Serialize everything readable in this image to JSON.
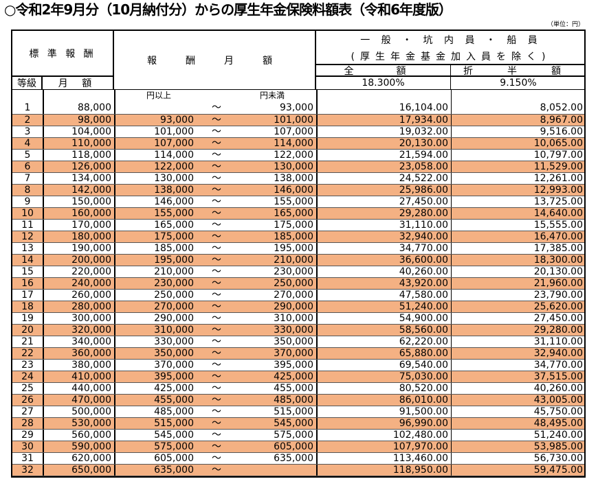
{
  "title": "○令和2年9月分（10月納付分）からの厚生年金保険料額表（令和6年度版）",
  "unit": "（単位：円）",
  "header": {
    "standard": "標 準 報 酬",
    "grade": "等級",
    "monthly": "月 額",
    "range": "報　酬　月　額",
    "category_line1": "一 般 ・ 坑 内 員 ・ 船 員",
    "category_line2": "(厚生年金基金加入員を除く)",
    "full": "全　額",
    "half": "折　半　額",
    "full_rate": "18.300%",
    "half_rate": "9.150%",
    "lower_unit": "円以上",
    "upper_unit": "円未満",
    "tilde": "～"
  },
  "colors": {
    "alt_row": "#F4B183"
  },
  "rows": [
    [
      "1",
      "88,000",
      "",
      "93,000",
      "16,104.00",
      "8,052.00"
    ],
    [
      "2",
      "98,000",
      "93,000",
      "101,000",
      "17,934.00",
      "8,967.00"
    ],
    [
      "3",
      "104,000",
      "101,000",
      "107,000",
      "19,032.00",
      "9,516.00"
    ],
    [
      "4",
      "110,000",
      "107,000",
      "114,000",
      "20,130.00",
      "10,065.00"
    ],
    [
      "5",
      "118,000",
      "114,000",
      "122,000",
      "21,594.00",
      "10,797.00"
    ],
    [
      "6",
      "126,000",
      "122,000",
      "130,000",
      "23,058.00",
      "11,529.00"
    ],
    [
      "7",
      "134,000",
      "130,000",
      "138,000",
      "24,522.00",
      "12,261.00"
    ],
    [
      "8",
      "142,000",
      "138,000",
      "146,000",
      "25,986.00",
      "12,993.00"
    ],
    [
      "9",
      "150,000",
      "146,000",
      "155,000",
      "27,450.00",
      "13,725.00"
    ],
    [
      "10",
      "160,000",
      "155,000",
      "165,000",
      "29,280.00",
      "14,640.00"
    ],
    [
      "11",
      "170,000",
      "165,000",
      "175,000",
      "31,110.00",
      "15,555.00"
    ],
    [
      "12",
      "180,000",
      "175,000",
      "185,000",
      "32,940.00",
      "16,470.00"
    ],
    [
      "13",
      "190,000",
      "185,000",
      "195,000",
      "34,770.00",
      "17,385.00"
    ],
    [
      "14",
      "200,000",
      "195,000",
      "210,000",
      "36,600.00",
      "18,300.00"
    ],
    [
      "15",
      "220,000",
      "210,000",
      "230,000",
      "40,260.00",
      "20,130.00"
    ],
    [
      "16",
      "240,000",
      "230,000",
      "250,000",
      "43,920.00",
      "21,960.00"
    ],
    [
      "17",
      "260,000",
      "250,000",
      "270,000",
      "47,580.00",
      "23,790.00"
    ],
    [
      "18",
      "280,000",
      "270,000",
      "290,000",
      "51,240.00",
      "25,620.00"
    ],
    [
      "19",
      "300,000",
      "290,000",
      "310,000",
      "54,900.00",
      "27,450.00"
    ],
    [
      "20",
      "320,000",
      "310,000",
      "330,000",
      "58,560.00",
      "29,280.00"
    ],
    [
      "21",
      "340,000",
      "330,000",
      "350,000",
      "62,220.00",
      "31,110.00"
    ],
    [
      "22",
      "360,000",
      "350,000",
      "370,000",
      "65,880.00",
      "32,940.00"
    ],
    [
      "23",
      "380,000",
      "370,000",
      "395,000",
      "69,540.00",
      "34,770.00"
    ],
    [
      "24",
      "410,000",
      "395,000",
      "425,000",
      "75,030.00",
      "37,515.00"
    ],
    [
      "25",
      "440,000",
      "425,000",
      "455,000",
      "80,520.00",
      "40,260.00"
    ],
    [
      "26",
      "470,000",
      "455,000",
      "485,000",
      "86,010.00",
      "43,005.00"
    ],
    [
      "27",
      "500,000",
      "485,000",
      "515,000",
      "91,500.00",
      "45,750.00"
    ],
    [
      "28",
      "530,000",
      "515,000",
      "545,000",
      "96,990.00",
      "48,495.00"
    ],
    [
      "29",
      "560,000",
      "545,000",
      "575,000",
      "102,480.00",
      "51,240.00"
    ],
    [
      "30",
      "590,000",
      "575,000",
      "605,000",
      "107,970.00",
      "53,985.00"
    ],
    [
      "31",
      "620,000",
      "605,000",
      "635,000",
      "113,460.00",
      "56,730.00"
    ],
    [
      "32",
      "650,000",
      "635,000",
      "",
      "118,950.00",
      "59,475.00"
    ]
  ]
}
